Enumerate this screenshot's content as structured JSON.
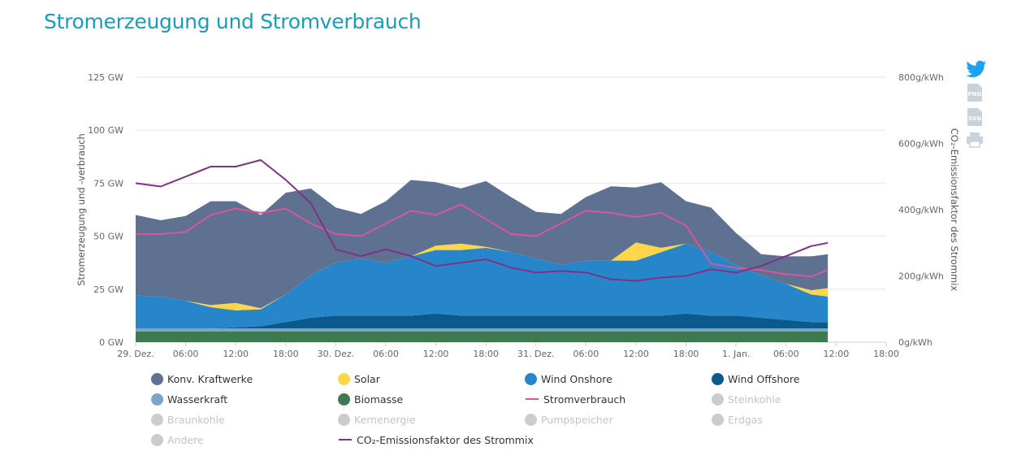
{
  "page": {
    "title": "Stromerzeugung und Stromverbrauch"
  },
  "toolbar": [
    {
      "name": "twitter-icon",
      "label": ""
    },
    {
      "name": "png-export-icon",
      "label": "PNG"
    },
    {
      "name": "svg-export-icon",
      "label": "SVG"
    },
    {
      "name": "print-icon",
      "label": ""
    }
  ],
  "colors": {
    "konv": "#5f7190",
    "solar": "#fdd64a",
    "onshore": "#2786c9",
    "offshore": "#0b5a8e",
    "wasser": "#7ba5c8",
    "biomasse": "#3e7a50",
    "verbrauch": "#d6579a",
    "co2": "#7b3485",
    "disabled": "#cccccc",
    "title": "#1a9bb8"
  },
  "legend": [
    {
      "label": "Konv. Kraftwerke",
      "key": "konv",
      "shape": "dot",
      "visible": true
    },
    {
      "label": "Solar",
      "key": "solar",
      "shape": "dot",
      "visible": true
    },
    {
      "label": "Wind Onshore",
      "key": "onshore",
      "shape": "dot",
      "visible": true
    },
    {
      "label": "Wind Offshore",
      "key": "offshore",
      "shape": "dot",
      "visible": true
    },
    {
      "label": "Wasserkraft",
      "key": "wasser",
      "shape": "dot",
      "visible": true
    },
    {
      "label": "Biomasse",
      "key": "biomasse",
      "shape": "dot",
      "visible": true
    },
    {
      "label": "Stromverbrauch",
      "key": "verbrauch",
      "shape": "line",
      "visible": true
    },
    {
      "label": "Steinkohle",
      "key": "disabled",
      "shape": "dot",
      "visible": false
    },
    {
      "label": "Braunkohle",
      "key": "disabled",
      "shape": "dot",
      "visible": false
    },
    {
      "label": "Kernenergie",
      "key": "disabled",
      "shape": "dot",
      "visible": false
    },
    {
      "label": "Pumpspeicher",
      "key": "disabled",
      "shape": "dot",
      "visible": false
    },
    {
      "label": "Erdgas",
      "key": "disabled",
      "shape": "dot",
      "visible": false
    },
    {
      "label": "Andere",
      "key": "disabled",
      "shape": "dot",
      "visible": false
    },
    {
      "label": "CO₂-Emissionsfaktor des Strommix",
      "key": "co2",
      "shape": "line",
      "visible": true
    }
  ],
  "chart_data": {
    "type": "area",
    "stacked": true,
    "unit_x": "hours",
    "xlim": [
      0,
      90
    ],
    "x_ticks": [
      {
        "x": 0,
        "label": "29. Dez."
      },
      {
        "x": 6,
        "label": "06:00"
      },
      {
        "x": 12,
        "label": "12:00"
      },
      {
        "x": 18,
        "label": "18:00"
      },
      {
        "x": 24,
        "label": "30. Dez."
      },
      {
        "x": 30,
        "label": "06:00"
      },
      {
        "x": 36,
        "label": "12:00"
      },
      {
        "x": 42,
        "label": "18:00"
      },
      {
        "x": 48,
        "label": "31. Dez."
      },
      {
        "x": 54,
        "label": "06:00"
      },
      {
        "x": 60,
        "label": "12:00"
      },
      {
        "x": 66,
        "label": "18:00"
      },
      {
        "x": 72,
        "label": "1. Jan."
      },
      {
        "x": 78,
        "label": "06:00"
      },
      {
        "x": 84,
        "label": "12:00"
      },
      {
        "x": 90,
        "label": "18:00"
      }
    ],
    "y_left": {
      "label": "Stromerzeugung und -verbrauch",
      "range": [
        0,
        125
      ],
      "ticks": [
        {
          "v": 0,
          "label": "0 GW"
        },
        {
          "v": 25,
          "label": "25 GW"
        },
        {
          "v": 50,
          "label": "50 GW"
        },
        {
          "v": 75,
          "label": "75 GW"
        },
        {
          "v": 100,
          "label": "100 GW"
        },
        {
          "v": 125,
          "label": "125 GW"
        }
      ]
    },
    "y_right": {
      "label": "CO₂-Emissionsfaktor des Strommix",
      "range": [
        0,
        800
      ],
      "ticks": [
        {
          "v": 0,
          "label": "0g/kWh"
        },
        {
          "v": 200,
          "label": "200g/kWh"
        },
        {
          "v": 400,
          "label": "400g/kWh"
        },
        {
          "v": 600,
          "label": "600g/kWh"
        },
        {
          "v": 800,
          "label": "800g/kWh"
        }
      ]
    },
    "x": [
      0,
      3,
      6,
      9,
      12,
      15,
      18,
      21,
      24,
      27,
      30,
      33,
      36,
      39,
      42,
      45,
      48,
      51,
      54,
      57,
      60,
      63,
      66,
      69,
      72,
      75,
      78,
      81,
      83
    ],
    "series": [
      {
        "name": "Biomasse",
        "key": "biomasse",
        "values": [
          5,
          5,
          5,
          5,
          5,
          5,
          5,
          5,
          5,
          5,
          5,
          5,
          5,
          5,
          5,
          5,
          5,
          5,
          5,
          5,
          5,
          5,
          5,
          5,
          5,
          5,
          5,
          5,
          5
        ]
      },
      {
        "name": "Wasserkraft",
        "key": "wasser",
        "values": [
          1.5,
          1.5,
          1.5,
          1.5,
          1.5,
          1.5,
          1.5,
          1.5,
          1.5,
          1.5,
          1.5,
          1.5,
          1.5,
          1.5,
          1.5,
          1.5,
          1.5,
          1.5,
          1.5,
          1.5,
          1.5,
          1.5,
          1.5,
          1.5,
          1.5,
          1.5,
          1.5,
          1.5,
          1.5
        ]
      },
      {
        "name": "Wind Offshore",
        "key": "offshore",
        "values": [
          0,
          0,
          0,
          0,
          0.5,
          1,
          3,
          5,
          6,
          6,
          6,
          6,
          7,
          6,
          6,
          6,
          6,
          6,
          6,
          6,
          6,
          6,
          7,
          6,
          6,
          5,
          4,
          3,
          3
        ]
      },
      {
        "name": "Wind Onshore",
        "key": "onshore",
        "values": [
          15.5,
          15,
          13,
          10,
          8,
          8,
          13,
          20,
          25,
          27,
          25,
          28,
          30,
          31,
          32,
          30,
          27,
          24,
          26,
          26,
          26,
          30,
          33,
          30,
          24,
          20,
          17,
          13,
          12
        ]
      },
      {
        "name": "Solar",
        "key": "solar",
        "values": [
          0,
          0,
          0,
          1,
          3.5,
          0.5,
          0,
          0,
          0,
          0,
          0,
          0,
          2,
          3,
          0.5,
          0,
          0,
          0,
          0,
          0,
          8.5,
          2,
          0,
          0,
          0,
          0,
          0,
          2,
          4
        ]
      },
      {
        "name": "Konv. Kraftwerke",
        "key": "konv",
        "values": [
          38,
          36,
          40,
          49,
          48,
          44,
          48,
          41,
          26,
          21,
          29,
          36,
          30,
          26,
          31,
          26,
          22,
          24,
          30,
          35,
          26,
          31,
          20,
          21,
          15,
          10,
          13,
          16,
          16
        ]
      }
    ],
    "lines": [
      {
        "name": "Stromverbrauch",
        "key": "verbrauch",
        "axis": "left",
        "values": [
          51,
          51,
          52,
          60,
          63,
          61,
          63,
          56,
          51,
          50,
          56,
          62,
          60,
          65,
          58,
          51,
          50,
          56,
          62,
          61,
          59,
          61,
          55,
          37,
          35,
          34,
          32,
          31,
          34
        ]
      },
      {
        "name": "CO₂-Emissionsfaktor des Strommix",
        "key": "co2",
        "axis": "right",
        "values": [
          480,
          470,
          500,
          530,
          530,
          550,
          490,
          420,
          280,
          260,
          280,
          260,
          230,
          240,
          250,
          225,
          210,
          215,
          210,
          190,
          185,
          195,
          200,
          220,
          210,
          230,
          260,
          290,
          300
        ]
      }
    ]
  }
}
